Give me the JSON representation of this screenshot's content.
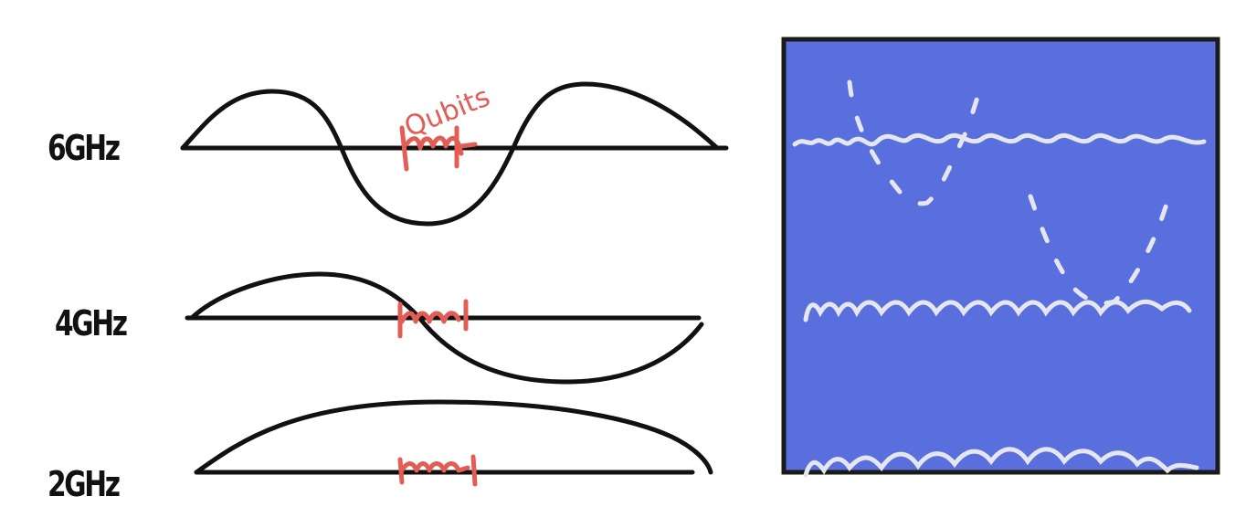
{
  "labels": {
    "freq_6": "6GHz",
    "freq_4": "4GHz",
    "freq_2": "2GHz",
    "qubits_note": "Qubits"
  },
  "colors": {
    "background": "#ffffff",
    "ink": "#111111",
    "qubit_red": "#e45d55",
    "panel_blue": "#5a6fde",
    "panel_stroke": "#1a1a1a",
    "panel_wave": "#e6e6ef"
  },
  "icons": [
    "wave-6ghz",
    "wave-4ghz",
    "wave-2ghz",
    "qubit-squiggle",
    "cavity-panel"
  ]
}
